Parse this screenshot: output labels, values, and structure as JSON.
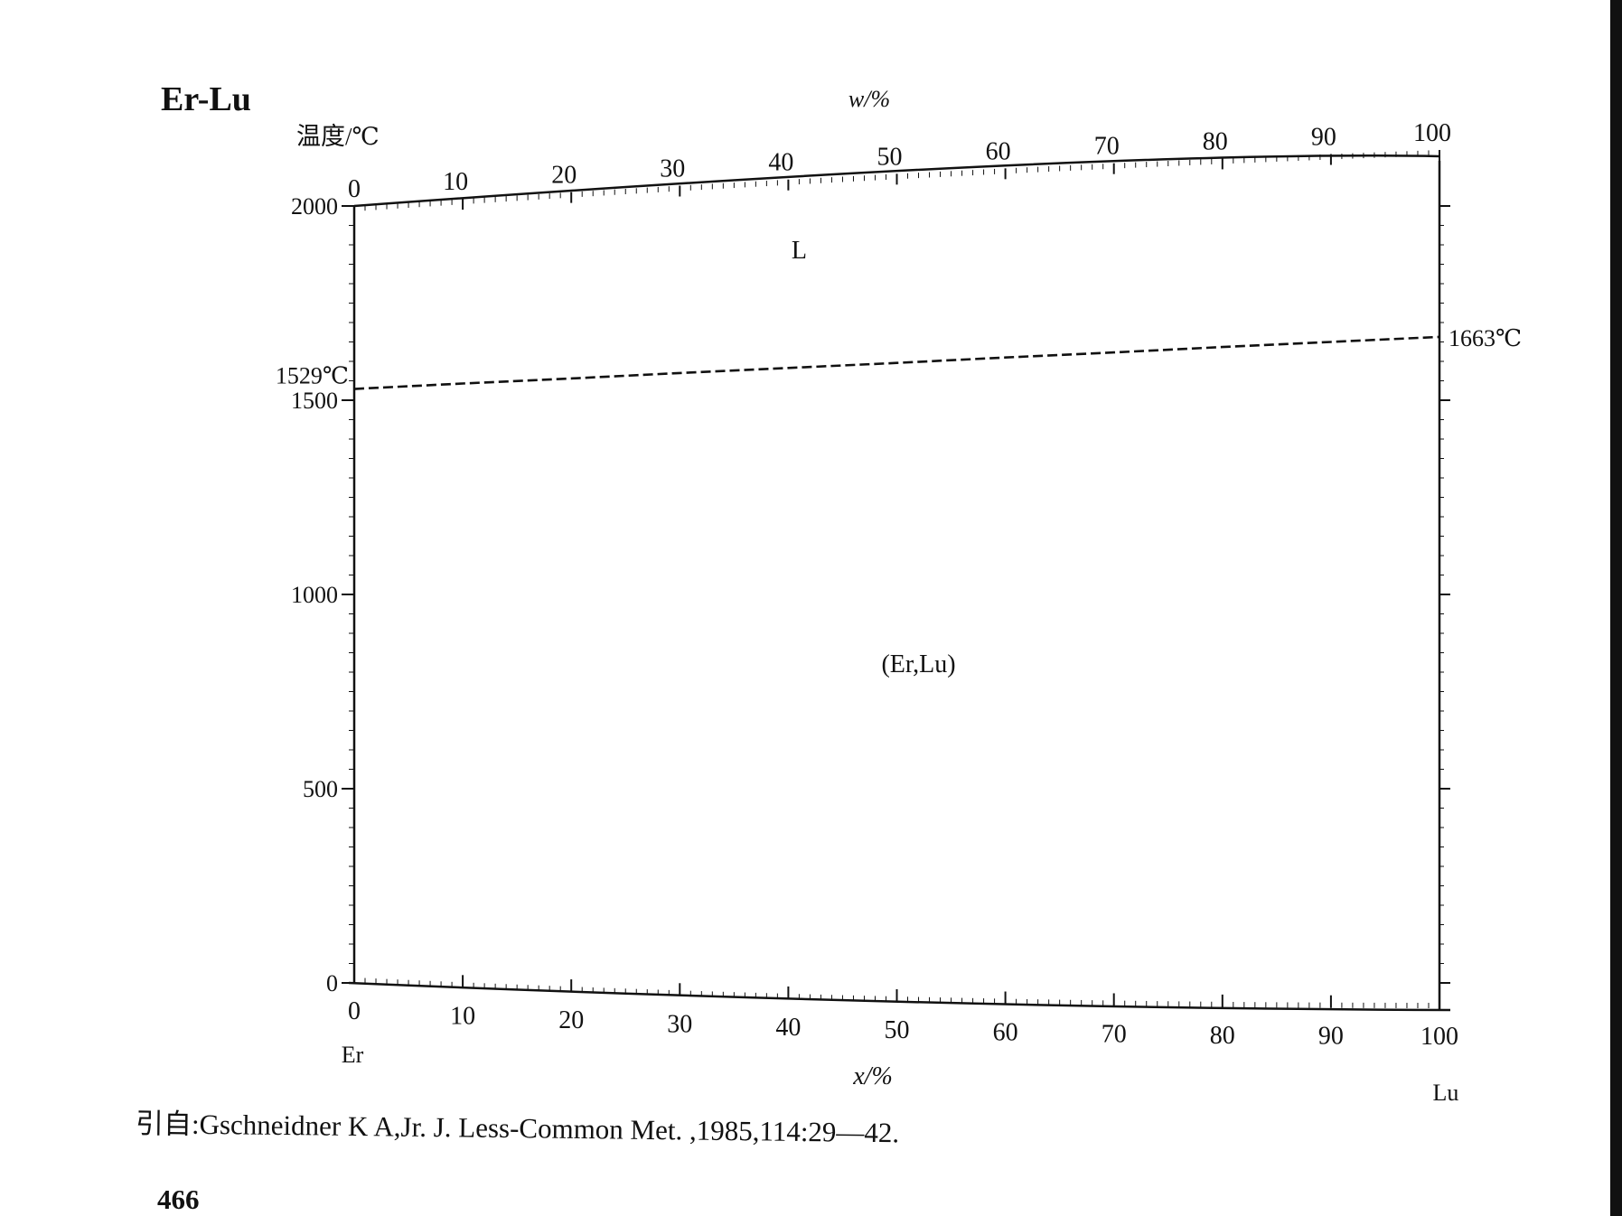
{
  "header": {
    "system": "Er-Lu"
  },
  "footer": {
    "citation": "引自:Gschneidner K A,Jr. J.  Less-Common Met. ,1985,114:29—42.",
    "page_number": "466"
  },
  "chart_data": {
    "type": "line",
    "title": "",
    "ylabel": "温度/℃",
    "xlabel": "x/%",
    "x2label": "w/%",
    "left_element": "Er",
    "right_element": "Lu",
    "ylim": [
      0,
      2000
    ],
    "xlim": [
      0,
      100
    ],
    "yticks": [
      0,
      500,
      1000,
      1500,
      2000
    ],
    "xticks": [
      0,
      10,
      20,
      30,
      40,
      50,
      60,
      70,
      80,
      90,
      100
    ],
    "x2ticks": [
      0,
      10,
      20,
      30,
      40,
      50,
      60,
      70,
      80,
      90,
      100
    ],
    "series": [
      {
        "style": "dashed",
        "x": [
          0,
          10,
          20,
          30,
          40,
          50,
          60,
          70,
          80,
          90,
          100
        ],
        "y": [
          1529,
          1543,
          1556,
          1570,
          1583,
          1596,
          1610,
          1623,
          1637,
          1650,
          1663
        ]
      }
    ],
    "annotations": [
      {
        "text": "1529℃",
        "x": 0,
        "y": 1529
      },
      {
        "text": "1663℃",
        "x": 100,
        "y": 1663
      }
    ],
    "regions": [
      {
        "text": "L",
        "x": 41,
        "y": 1865
      },
      {
        "text": "(Er,Lu)",
        "x": 52,
        "y": 800
      }
    ]
  }
}
